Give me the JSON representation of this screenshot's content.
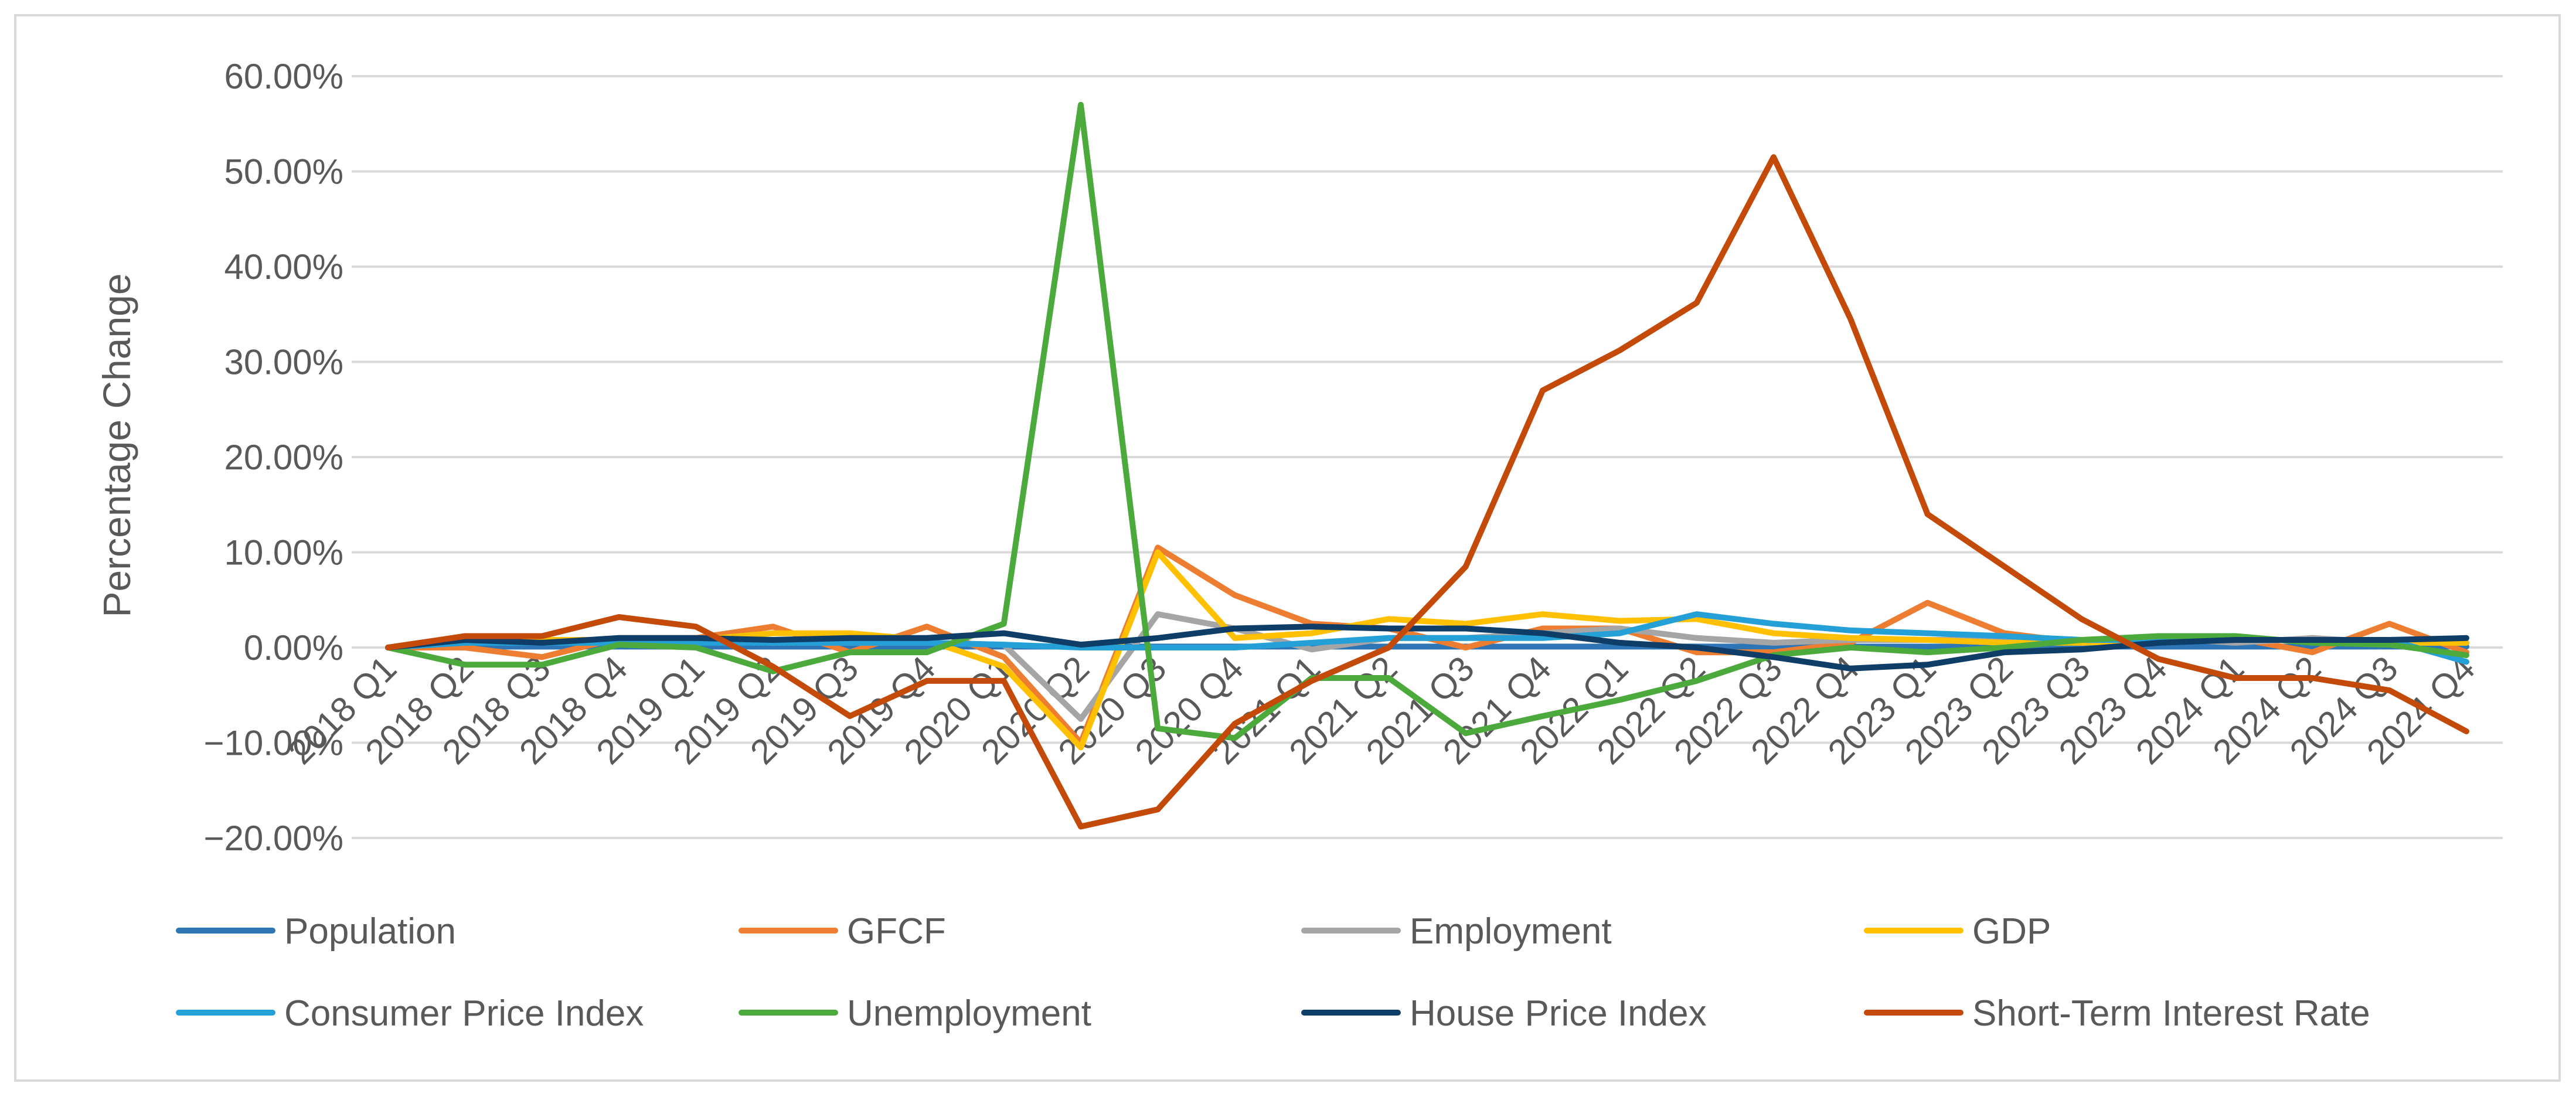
{
  "chart_data": {
    "type": "line",
    "title": "",
    "xlabel": "",
    "ylabel": "Percentage Change",
    "ylim": [
      -0.2,
      0.6
    ],
    "ytick_step": 0.1,
    "ytick_labels": [
      "−20.00%",
      "−10.00%",
      "0.00%",
      "10.00%",
      "20.00%",
      "30.00%",
      "40.00%",
      "50.00%",
      "60.00%"
    ],
    "grid": true,
    "legend_position": "bottom",
    "categories": [
      "2018 Q1",
      "2018 Q2",
      "2018 Q3",
      "2018 Q4",
      "2019 Q1",
      "2019 Q2",
      "2019 Q3",
      "2019 Q4",
      "2020 Q1",
      "2020 Q2",
      "2020 Q3",
      "2020 Q4",
      "2021 Q1",
      "2021 Q2",
      "2021 Q3",
      "2021 Q4",
      "2022 Q1",
      "2022 Q2",
      "2022 Q3",
      "2022 Q4",
      "2023 Q1",
      "2023 Q2",
      "2023 Q3",
      "2023 Q4",
      "2024 Q1",
      "2024 Q2",
      "2024 Q3",
      "2024 Q4"
    ],
    "series": [
      {
        "name": "Population",
        "color": "#2e75b6",
        "values": [
          0,
          0.001,
          0.001,
          0.001,
          0.001,
          0.001,
          0.001,
          0.001,
          0.001,
          0.001,
          0.001,
          0.001,
          0.001,
          0.001,
          0.001,
          0.001,
          0.001,
          0.001,
          0.001,
          0.001,
          0.001,
          0.001,
          0.001,
          0.001,
          0.001,
          0.001,
          0.001,
          0.001
        ]
      },
      {
        "name": "GFCF",
        "color": "#ed7d31",
        "values": [
          0,
          0.0,
          -0.01,
          0.01,
          0.01,
          0.022,
          -0.005,
          0.022,
          -0.01,
          -0.1,
          0.105,
          0.055,
          0.025,
          0.02,
          0.0,
          0.02,
          0.02,
          -0.005,
          -0.005,
          0.005,
          0.047,
          0.015,
          0.005,
          0.01,
          0.01,
          -0.005,
          0.025,
          -0.005
        ]
      },
      {
        "name": "Employment",
        "color": "#a5a5a5",
        "values": [
          0,
          0.008,
          0.008,
          0.008,
          0.008,
          0.005,
          0.005,
          0.005,
          0.003,
          -0.075,
          0.035,
          0.02,
          -0.002,
          0.01,
          0.01,
          0.015,
          0.02,
          0.01,
          0.005,
          0.008,
          0.008,
          0.008,
          0.005,
          0.01,
          0.005,
          0.01,
          0.005,
          0.005
        ]
      },
      {
        "name": "GDP",
        "color": "#ffc000",
        "values": [
          0,
          0.008,
          0.008,
          0.008,
          0.008,
          0.015,
          0.015,
          0.008,
          -0.02,
          -0.105,
          0.1,
          0.01,
          0.015,
          0.03,
          0.025,
          0.035,
          0.028,
          0.03,
          0.015,
          0.01,
          0.008,
          0.005,
          0.005,
          0.008,
          0.008,
          0.008,
          0.005,
          0.005
        ]
      },
      {
        "name": "Consumer Price Index",
        "color": "#24a0d6",
        "values": [
          0,
          0.005,
          0.005,
          0.005,
          0.005,
          0.005,
          0.005,
          0.005,
          0.003,
          0.0,
          0.0,
          0.0,
          0.005,
          0.01,
          0.01,
          0.01,
          0.015,
          0.035,
          0.025,
          0.018,
          0.015,
          0.012,
          0.008,
          0.008,
          0.008,
          0.008,
          0.008,
          -0.015
        ]
      },
      {
        "name": "Unemployment",
        "color": "#4caa3d",
        "values": [
          0,
          -0.018,
          -0.018,
          0.003,
          0.0,
          -0.025,
          -0.005,
          -0.005,
          0.025,
          0.57,
          -0.085,
          -0.095,
          -0.032,
          -0.032,
          -0.09,
          -0.072,
          -0.055,
          -0.035,
          -0.008,
          0.0,
          -0.005,
          0.0,
          0.008,
          0.012,
          0.012,
          0.005,
          0.003,
          -0.008
        ]
      },
      {
        "name": "House Price Index",
        "color": "#0e3d68",
        "values": [
          0,
          0.008,
          0.005,
          0.01,
          0.01,
          0.008,
          0.01,
          0.01,
          0.015,
          0.003,
          0.01,
          0.02,
          0.022,
          0.02,
          0.02,
          0.015,
          0.005,
          0.0,
          -0.01,
          -0.022,
          -0.018,
          -0.005,
          -0.002,
          0.005,
          0.008,
          0.008,
          0.008,
          0.01
        ]
      },
      {
        "name": "Short-Term Interest Rate",
        "color": "#c44a0a",
        "values": [
          0,
          0.012,
          0.012,
          0.032,
          0.022,
          -0.02,
          -0.072,
          -0.035,
          -0.035,
          -0.188,
          -0.17,
          -0.08,
          -0.035,
          0.0,
          0.085,
          0.27,
          0.312,
          0.362,
          0.515,
          0.345,
          0.14,
          0.085,
          0.03,
          -0.012,
          -0.032,
          -0.032,
          -0.045,
          -0.088
        ]
      }
    ]
  }
}
